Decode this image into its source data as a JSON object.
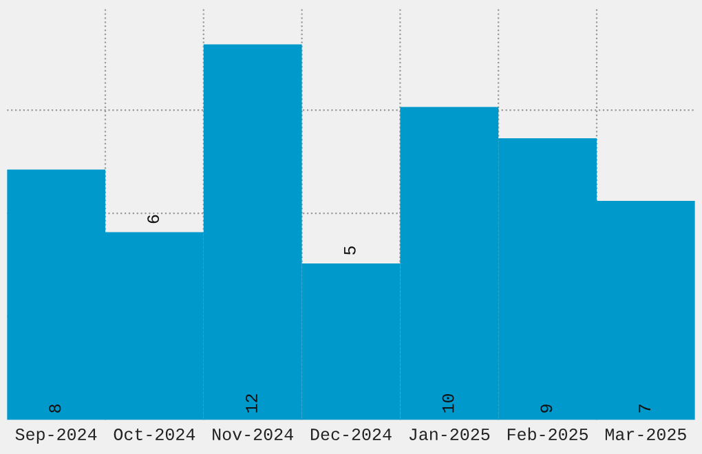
{
  "chart_data": {
    "type": "bar",
    "categories": [
      "Sep-2024",
      "Oct-2024",
      "Nov-2024",
      "Dec-2024",
      "Jan-2025",
      "Feb-2025",
      "Mar-2025"
    ],
    "values": [
      8,
      6,
      12,
      5,
      10,
      9,
      7
    ],
    "color": "#0099cc",
    "ylim": [
      0,
      13.2
    ],
    "yticks": [
      {
        "value": 3.3,
        "label": null
      },
      {
        "value": 6.6,
        "label": null
      },
      {
        "value": 9.9,
        "label": null
      }
    ],
    "tick_labels": "x",
    "grid": true,
    "data_labels": true
  }
}
